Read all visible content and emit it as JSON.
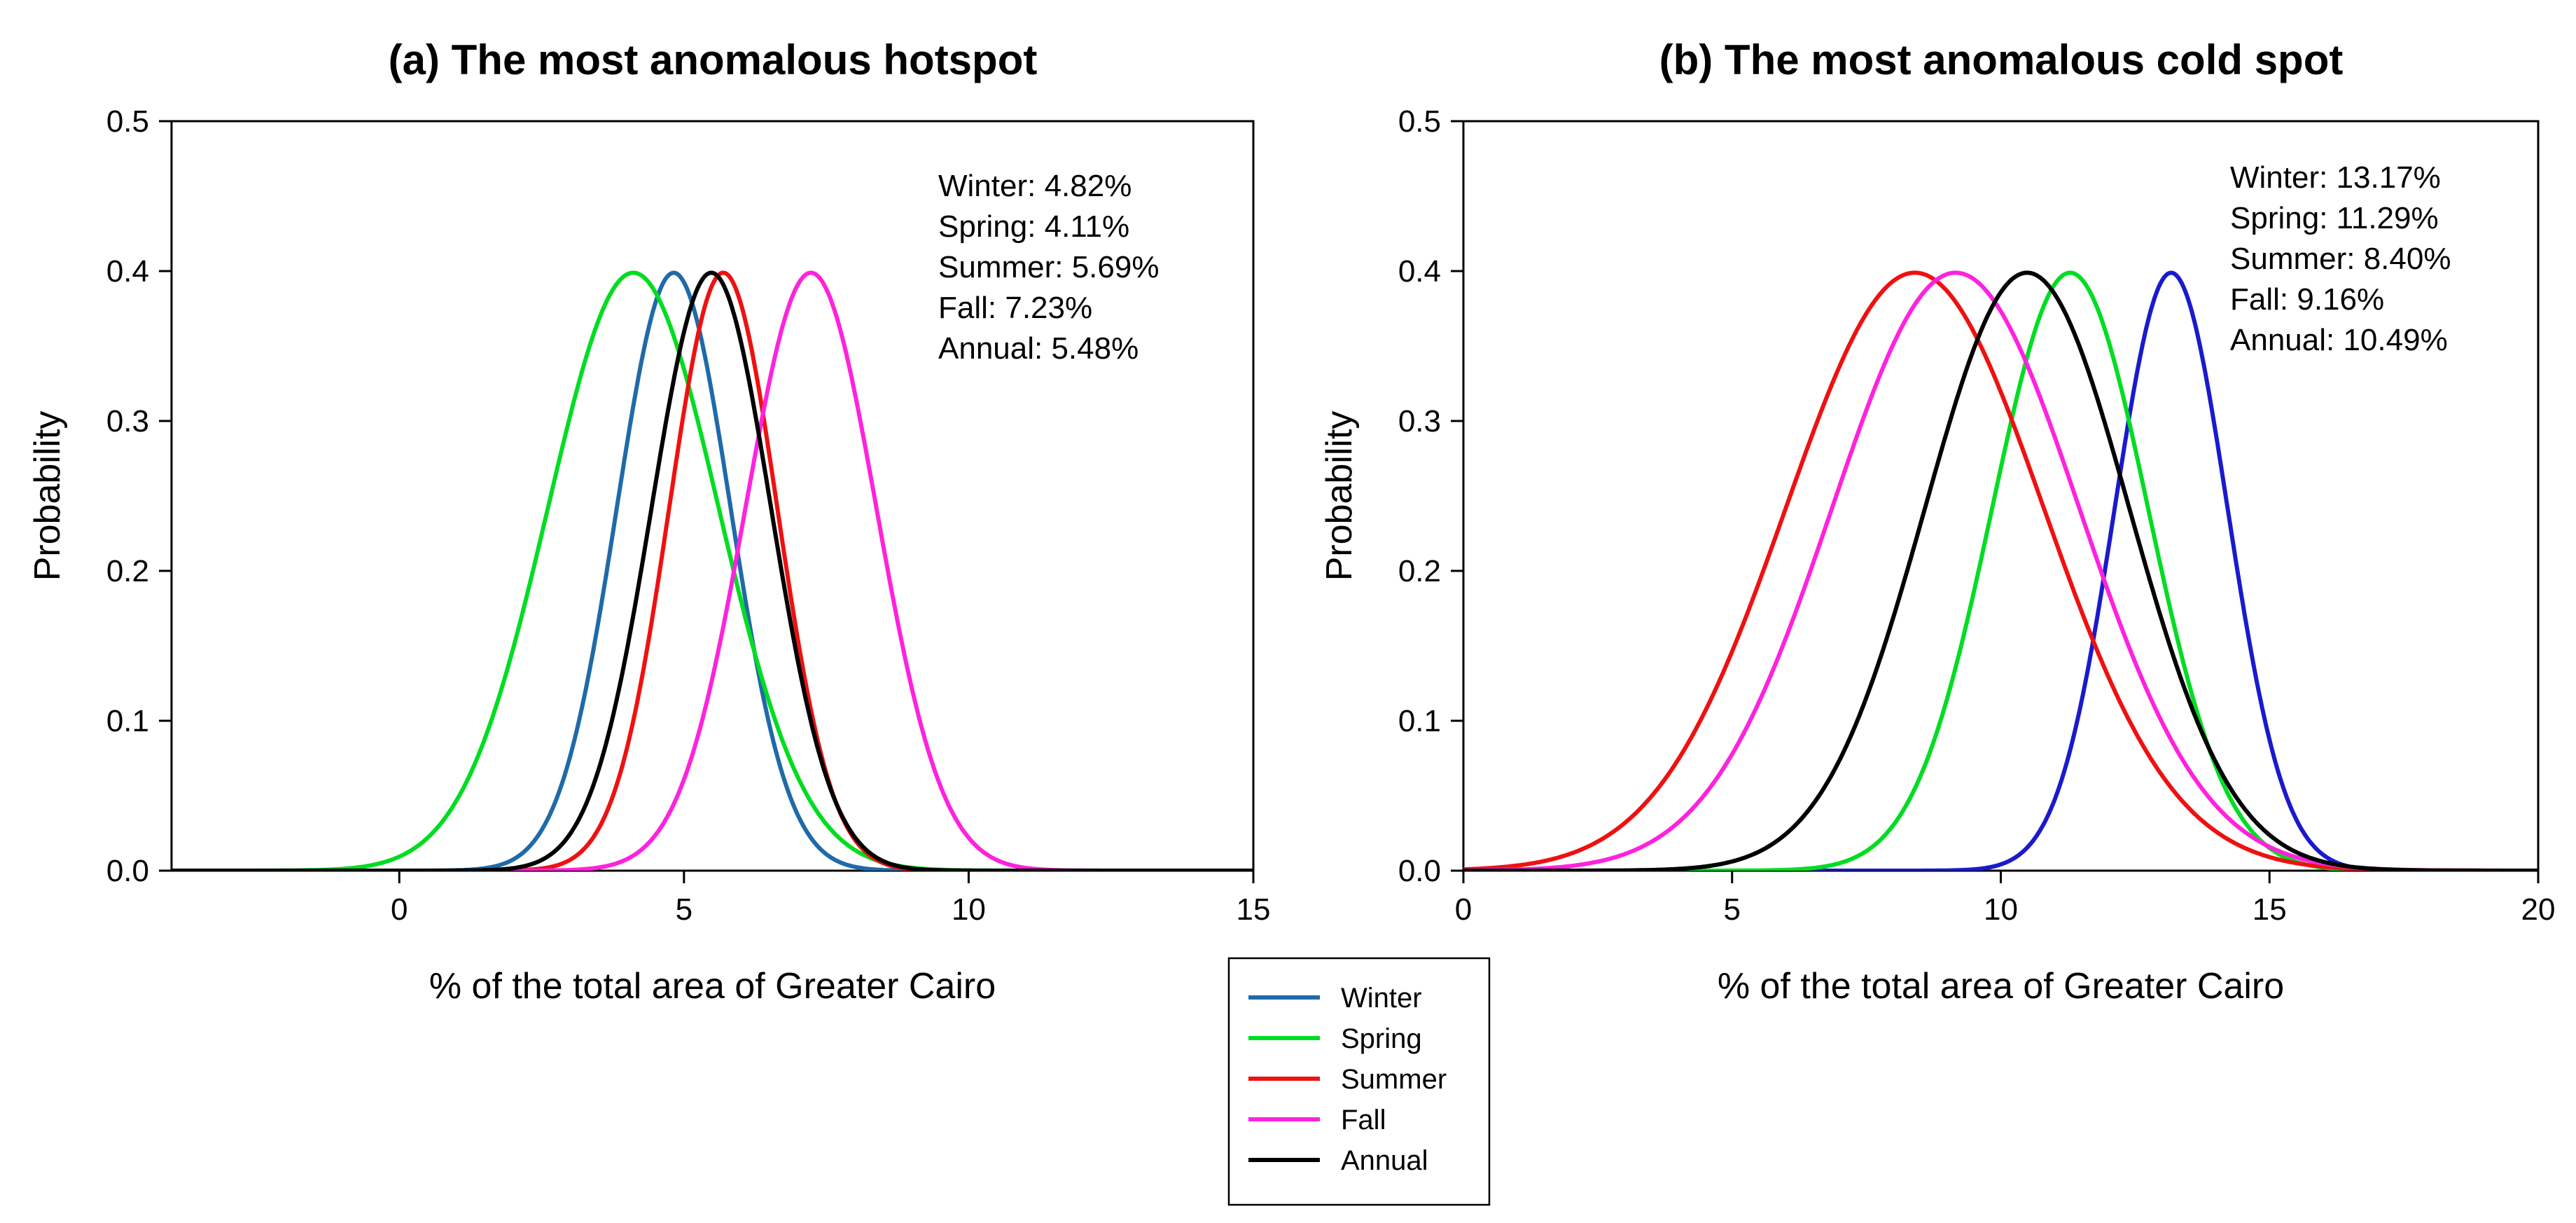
{
  "chart_data": [
    {
      "type": "line",
      "id": "hotspot",
      "title": "(a) The most anomalous hotspot",
      "xlabel": "% of the total area of Greater Cairo",
      "ylabel": "Probability",
      "xlim": [
        -4,
        15
      ],
      "ylim": [
        0,
        0.5
      ],
      "xticks": [
        0,
        5,
        10,
        15
      ],
      "xtick_labels": [
        "0",
        "5",
        "10",
        "15"
      ],
      "yticks": [
        0,
        0.1,
        0.2,
        0.3,
        0.4,
        0.5
      ],
      "ytick_labels": [
        "0.0",
        "0.1",
        "0.2",
        "0.3",
        "0.4",
        "0.5"
      ],
      "grid": false,
      "annotations": [
        "Winter: 4.82%",
        "Spring: 4.11%",
        "Summer:  5.69%",
        "Fall: 7.23%",
        "Annual:  5.48%"
      ],
      "series": [
        {
          "name": "Winter",
          "color": "#1f6aa8",
          "mean": 4.82,
          "sd": 1.0
        },
        {
          "name": "Spring",
          "color": "#00dd22",
          "mean": 4.11,
          "sd": 1.5
        },
        {
          "name": "Summer",
          "color": "#ee1111",
          "mean": 5.69,
          "sd": 0.95
        },
        {
          "name": "Fall",
          "color": "#ff22dd",
          "mean": 7.23,
          "sd": 1.15
        },
        {
          "name": "Annual",
          "color": "#000000",
          "mean": 5.48,
          "sd": 1.05
        }
      ]
    },
    {
      "type": "line",
      "id": "coldspot",
      "title": "(b) The most anomalous cold spot",
      "xlabel": "% of the total area of Greater Cairo",
      "ylabel": "Probability",
      "xlim": [
        0,
        20
      ],
      "ylim": [
        0,
        0.5
      ],
      "xticks": [
        0,
        5,
        10,
        15,
        20
      ],
      "xtick_labels": [
        "0",
        "5",
        "10",
        "15",
        "20"
      ],
      "yticks": [
        0,
        0.1,
        0.2,
        0.3,
        0.4,
        0.5
      ],
      "ytick_labels": [
        "0.0",
        "0.1",
        "0.2",
        "0.3",
        "0.4",
        "0.5"
      ],
      "grid": false,
      "annotations": [
        "Winter: 13.17%",
        "Spring: 11.29%",
        "Summer:  8.40%",
        "Fall: 9.16%",
        "Annual:  10.49%"
      ],
      "series": [
        {
          "name": "Winter",
          "color": "#1a1acc",
          "mean": 13.17,
          "sd": 1.05
        },
        {
          "name": "Spring",
          "color": "#00dd22",
          "mean": 11.29,
          "sd": 1.45
        },
        {
          "name": "Summer",
          "color": "#ee1111",
          "mean": 8.4,
          "sd": 2.4
        },
        {
          "name": "Fall",
          "color": "#ff22dd",
          "mean": 9.16,
          "sd": 2.3
        },
        {
          "name": "Annual",
          "color": "#000000",
          "mean": 10.49,
          "sd": 1.9
        }
      ]
    }
  ],
  "legend": {
    "entries": [
      {
        "label": "Winter",
        "color": "#1f6aa8"
      },
      {
        "label": "Spring",
        "color": "#00dd22"
      },
      {
        "label": "Summer",
        "color": "#ee1111"
      },
      {
        "label": "Fall",
        "color": "#ff22dd"
      },
      {
        "label": "Annual",
        "color": "#000000"
      }
    ]
  }
}
